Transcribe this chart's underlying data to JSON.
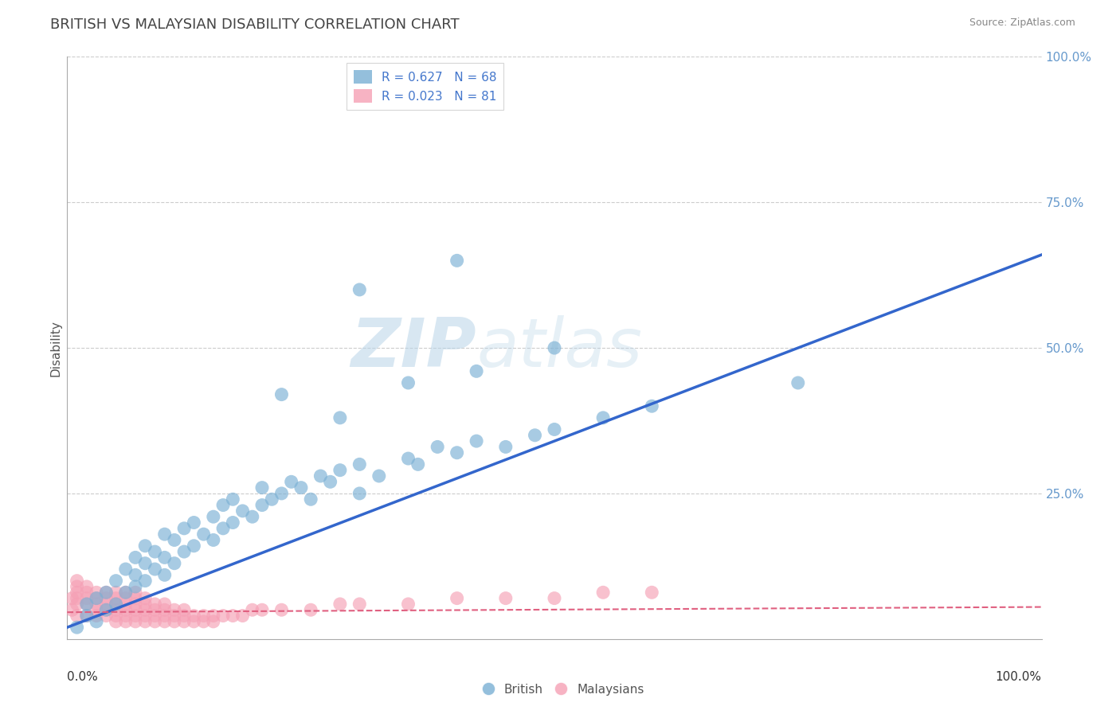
{
  "title": "BRITISH VS MALAYSIAN DISABILITY CORRELATION CHART",
  "source": "Source: ZipAtlas.com",
  "ylabel": "Disability",
  "xlim": [
    0,
    1
  ],
  "ylim": [
    0,
    1
  ],
  "grid_color": "#cccccc",
  "background_color": "#ffffff",
  "british_color": "#7ab0d4",
  "malaysian_color": "#f5a0b5",
  "british_line_color": "#3366cc",
  "malaysian_line_color": "#e06080",
  "british_R": 0.627,
  "british_N": 68,
  "malaysian_R": 0.023,
  "malaysian_N": 81,
  "watermark_left": "ZIP",
  "watermark_right": "atlas",
  "british_x": [
    0.01,
    0.02,
    0.02,
    0.03,
    0.03,
    0.04,
    0.04,
    0.05,
    0.05,
    0.06,
    0.06,
    0.07,
    0.07,
    0.07,
    0.08,
    0.08,
    0.08,
    0.09,
    0.09,
    0.1,
    0.1,
    0.1,
    0.11,
    0.11,
    0.12,
    0.12,
    0.13,
    0.13,
    0.14,
    0.15,
    0.15,
    0.16,
    0.16,
    0.17,
    0.17,
    0.18,
    0.19,
    0.2,
    0.2,
    0.21,
    0.22,
    0.23,
    0.24,
    0.25,
    0.26,
    0.27,
    0.28,
    0.3,
    0.3,
    0.32,
    0.35,
    0.36,
    0.38,
    0.4,
    0.42,
    0.45,
    0.48,
    0.5,
    0.55,
    0.6,
    0.22,
    0.28,
    0.35,
    0.42,
    0.5,
    0.75,
    0.3,
    0.4
  ],
  "british_y": [
    0.02,
    0.04,
    0.06,
    0.03,
    0.07,
    0.05,
    0.08,
    0.06,
    0.1,
    0.08,
    0.12,
    0.09,
    0.11,
    0.14,
    0.1,
    0.13,
    0.16,
    0.12,
    0.15,
    0.11,
    0.14,
    0.18,
    0.13,
    0.17,
    0.15,
    0.19,
    0.16,
    0.2,
    0.18,
    0.17,
    0.21,
    0.19,
    0.23,
    0.2,
    0.24,
    0.22,
    0.21,
    0.23,
    0.26,
    0.24,
    0.25,
    0.27,
    0.26,
    0.24,
    0.28,
    0.27,
    0.29,
    0.25,
    0.3,
    0.28,
    0.31,
    0.3,
    0.33,
    0.32,
    0.34,
    0.33,
    0.35,
    0.36,
    0.38,
    0.4,
    0.42,
    0.38,
    0.44,
    0.46,
    0.5,
    0.44,
    0.6,
    0.65
  ],
  "malaysian_x": [
    0.005,
    0.005,
    0.01,
    0.01,
    0.01,
    0.01,
    0.01,
    0.01,
    0.02,
    0.02,
    0.02,
    0.02,
    0.02,
    0.03,
    0.03,
    0.03,
    0.03,
    0.03,
    0.04,
    0.04,
    0.04,
    0.04,
    0.04,
    0.05,
    0.05,
    0.05,
    0.05,
    0.05,
    0.05,
    0.06,
    0.06,
    0.06,
    0.06,
    0.06,
    0.06,
    0.07,
    0.07,
    0.07,
    0.07,
    0.07,
    0.07,
    0.08,
    0.08,
    0.08,
    0.08,
    0.08,
    0.09,
    0.09,
    0.09,
    0.09,
    0.1,
    0.1,
    0.1,
    0.1,
    0.11,
    0.11,
    0.11,
    0.12,
    0.12,
    0.12,
    0.13,
    0.13,
    0.14,
    0.14,
    0.15,
    0.15,
    0.16,
    0.17,
    0.18,
    0.19,
    0.2,
    0.22,
    0.25,
    0.28,
    0.3,
    0.35,
    0.4,
    0.45,
    0.5,
    0.55,
    0.6
  ],
  "malaysian_y": [
    0.05,
    0.07,
    0.04,
    0.06,
    0.07,
    0.08,
    0.09,
    0.1,
    0.04,
    0.06,
    0.07,
    0.08,
    0.09,
    0.04,
    0.05,
    0.06,
    0.07,
    0.08,
    0.04,
    0.05,
    0.06,
    0.07,
    0.08,
    0.03,
    0.04,
    0.05,
    0.06,
    0.07,
    0.08,
    0.03,
    0.04,
    0.05,
    0.06,
    0.07,
    0.08,
    0.03,
    0.04,
    0.05,
    0.06,
    0.07,
    0.08,
    0.03,
    0.04,
    0.05,
    0.06,
    0.07,
    0.03,
    0.04,
    0.05,
    0.06,
    0.03,
    0.04,
    0.05,
    0.06,
    0.03,
    0.04,
    0.05,
    0.03,
    0.04,
    0.05,
    0.03,
    0.04,
    0.03,
    0.04,
    0.03,
    0.04,
    0.04,
    0.04,
    0.04,
    0.05,
    0.05,
    0.05,
    0.05,
    0.06,
    0.06,
    0.06,
    0.07,
    0.07,
    0.07,
    0.08,
    0.08
  ],
  "brit_line_x0": 0.0,
  "brit_line_y0": 0.02,
  "brit_line_x1": 1.0,
  "brit_line_y1": 0.66,
  "mal_line_x0": 0.0,
  "mal_line_y0": 0.046,
  "mal_line_x1": 1.0,
  "mal_line_y1": 0.055
}
